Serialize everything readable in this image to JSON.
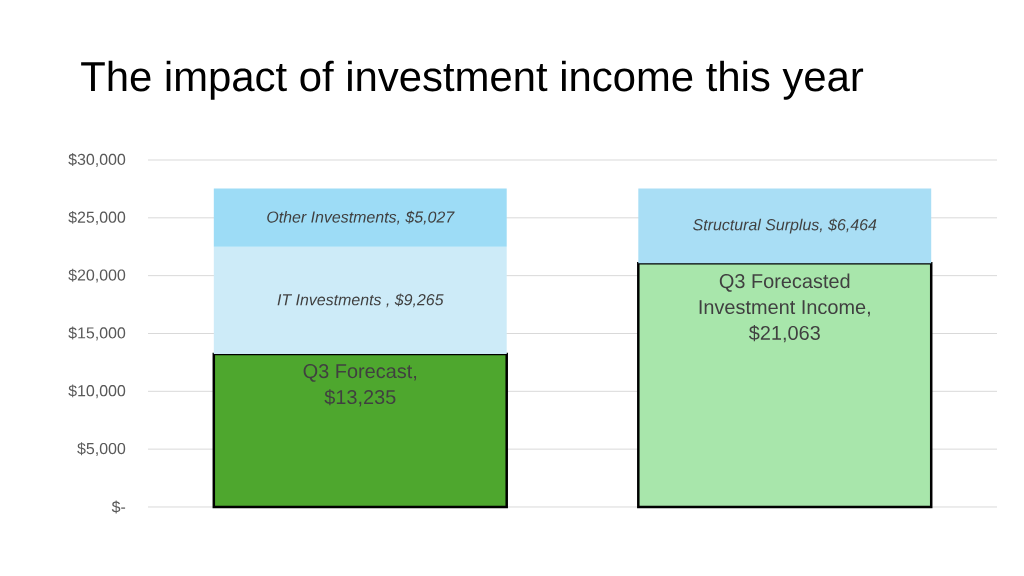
{
  "chart_data": {
    "type": "bar",
    "title": "The impact of investment income this year",
    "categories": [
      null,
      null
    ],
    "stacked": true,
    "series": [
      {
        "colors": [
          "#4ea72e",
          "#a8e6ab"
        ],
        "values": [
          13235,
          21063
        ],
        "value_labels": [
          "Q3 Forecast, $13,235",
          "Q3 Forecasted Investment Income, $21,063"
        ]
      },
      {
        "colors": [
          "#cdebf8",
          "#a9def5"
        ],
        "values": [
          9265,
          6464
        ],
        "value_labels": [
          "IT Investments , $9,265",
          "Structural Surplus, $6,464"
        ]
      },
      {
        "color": "#9ddcf6",
        "values": [
          5027,
          null
        ],
        "value_labels": [
          "Other Investments, $5,027",
          null
        ]
      }
    ],
    "ylim": [
      0,
      30000
    ],
    "yticks": [
      {
        "value": 0,
        "label": "$-"
      },
      {
        "value": 5000,
        "label": "$5,000"
      },
      {
        "value": 10000,
        "label": "$10,000"
      },
      {
        "value": 15000,
        "label": "$15,000"
      },
      {
        "value": 20000,
        "label": "$20,000"
      },
      {
        "value": 25000,
        "label": "$25,000"
      },
      {
        "value": 30000,
        "label": "$30,000"
      }
    ],
    "grid": "y"
  }
}
